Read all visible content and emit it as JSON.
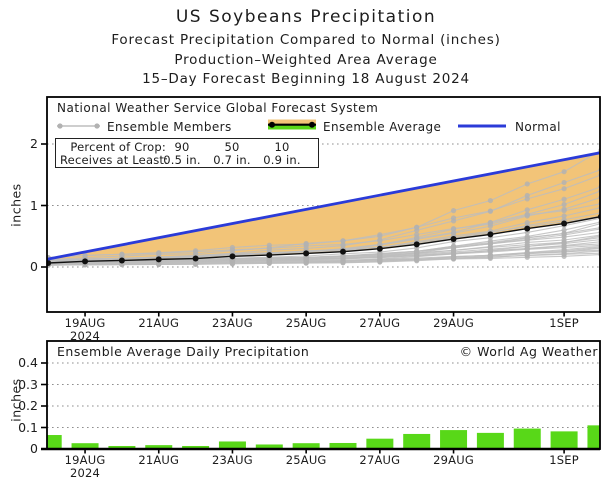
{
  "titles": {
    "main": "US Soybeans Precipitation",
    "sub1": "Forecast Precipitation Compared to Normal (inches)",
    "sub2": "Production–Weighted Area Average",
    "sub3": "15–Day Forecast Beginning 18 August 2024"
  },
  "colors": {
    "normal_blue": "#2B3BD8",
    "deficit_band_orange": "#F2C478",
    "surplus_green": "#58D818",
    "bar_green": "#58D818",
    "member_gray": "#BDBDBD",
    "member_dot_gray": "#B2B2B2",
    "average_black": "#111111"
  },
  "top_chart": {
    "header": "National Weather Service Global Forecast System",
    "legend": [
      {
        "label": "Ensemble Members",
        "swatch": "gray-line-with-dots"
      },
      {
        "label": "Ensemble Average",
        "swatch": "black-line-orange-green-band"
      },
      {
        "label": "Normal",
        "swatch": "blue-line"
      }
    ],
    "crop_table": {
      "row1_label": "Percent of Crop:",
      "row1_values": [
        "90",
        "50",
        "10"
      ],
      "row2_label": "Receives at Least:",
      "row2_values": [
        "0.5 in.",
        "0.7 in.",
        "0.9 in."
      ]
    },
    "ylabel": "inches",
    "yticks": [
      {
        "label": "0",
        "v": 0
      },
      {
        "label": "1",
        "v": 1
      },
      {
        "label": "2",
        "v": 2
      }
    ]
  },
  "bottom_chart": {
    "title": "Ensemble Average Daily Precipitation",
    "copyright": "© World Ag Weather",
    "ylabel": "inches",
    "yticks": [
      {
        "label": "0",
        "v": 0
      },
      {
        "label": "0.1",
        "v": 0.1
      },
      {
        "label": "0.2",
        "v": 0.2
      },
      {
        "label": "0.3",
        "v": 0.3
      },
      {
        "label": "0.4",
        "v": 0.4
      }
    ]
  },
  "xticks": [
    {
      "label": "19AUG",
      "day": 1,
      "sub": "2024"
    },
    {
      "label": "21AUG",
      "day": 3
    },
    {
      "label": "23AUG",
      "day": 5
    },
    {
      "label": "25AUG",
      "day": 7
    },
    {
      "label": "27AUG",
      "day": 9
    },
    {
      "label": "29AUG",
      "day": 11
    },
    {
      "label": "1SEP",
      "day": 14
    }
  ],
  "chart_data": [
    {
      "type": "line",
      "title": "Forecast cumulative precipitation vs normal",
      "x": [
        "18AUG",
        "19AUG",
        "20AUG",
        "21AUG",
        "22AUG",
        "23AUG",
        "24AUG",
        "25AUG",
        "26AUG",
        "27AUG",
        "28AUG",
        "29AUG",
        "30AUG",
        "31AUG",
        "1SEP",
        "2SEP"
      ],
      "series": [
        {
          "name": "Ensemble Average",
          "values": [
            0.065,
            0.092,
            0.106,
            0.124,
            0.138,
            0.173,
            0.194,
            0.221,
            0.249,
            0.297,
            0.367,
            0.455,
            0.53,
            0.625,
            0.707,
            0.82
          ]
        },
        {
          "name": "Normal",
          "shape": "linear",
          "start": 0.126,
          "end": 1.857
        }
      ],
      "ensemble_members": {
        "count": 30,
        "final_values": [
          0.2,
          0.23,
          0.26,
          0.28,
          0.3,
          0.32,
          0.34,
          0.36,
          0.38,
          0.41,
          0.44,
          0.47,
          0.5,
          0.53,
          0.57,
          0.61,
          0.65,
          0.69,
          0.73,
          0.78,
          0.84,
          0.9,
          0.97,
          1.05,
          1.13,
          1.22,
          1.33,
          1.47,
          1.62,
          1.92
        ]
      },
      "ylabel": "inches",
      "yticks": [
        0,
        1,
        2
      ],
      "ylim": [
        -0.73,
        2.76
      ],
      "grid": "dotted horizontal at 0,1,2",
      "band": "orange fill between Normal and Ensemble Average"
    },
    {
      "type": "bar",
      "title": "Ensemble Average Daily Precipitation",
      "x": [
        "18AUG",
        "19AUG",
        "20AUG",
        "21AUG",
        "22AUG",
        "23AUG",
        "24AUG",
        "25AUG",
        "26AUG",
        "27AUG",
        "28AUG",
        "29AUG",
        "30AUG",
        "31AUG",
        "1SEP",
        "2SEP"
      ],
      "values": [
        0.065,
        0.027,
        0.014,
        0.018,
        0.014,
        0.035,
        0.021,
        0.027,
        0.028,
        0.048,
        0.07,
        0.088,
        0.075,
        0.095,
        0.082,
        0.11
      ],
      "ylabel": "inches",
      "yticks": [
        0,
        0.1,
        0.2,
        0.3,
        0.4
      ],
      "ylim": [
        0,
        0.5
      ],
      "grid": "dotted horizontal at 0.1-0.4"
    }
  ]
}
